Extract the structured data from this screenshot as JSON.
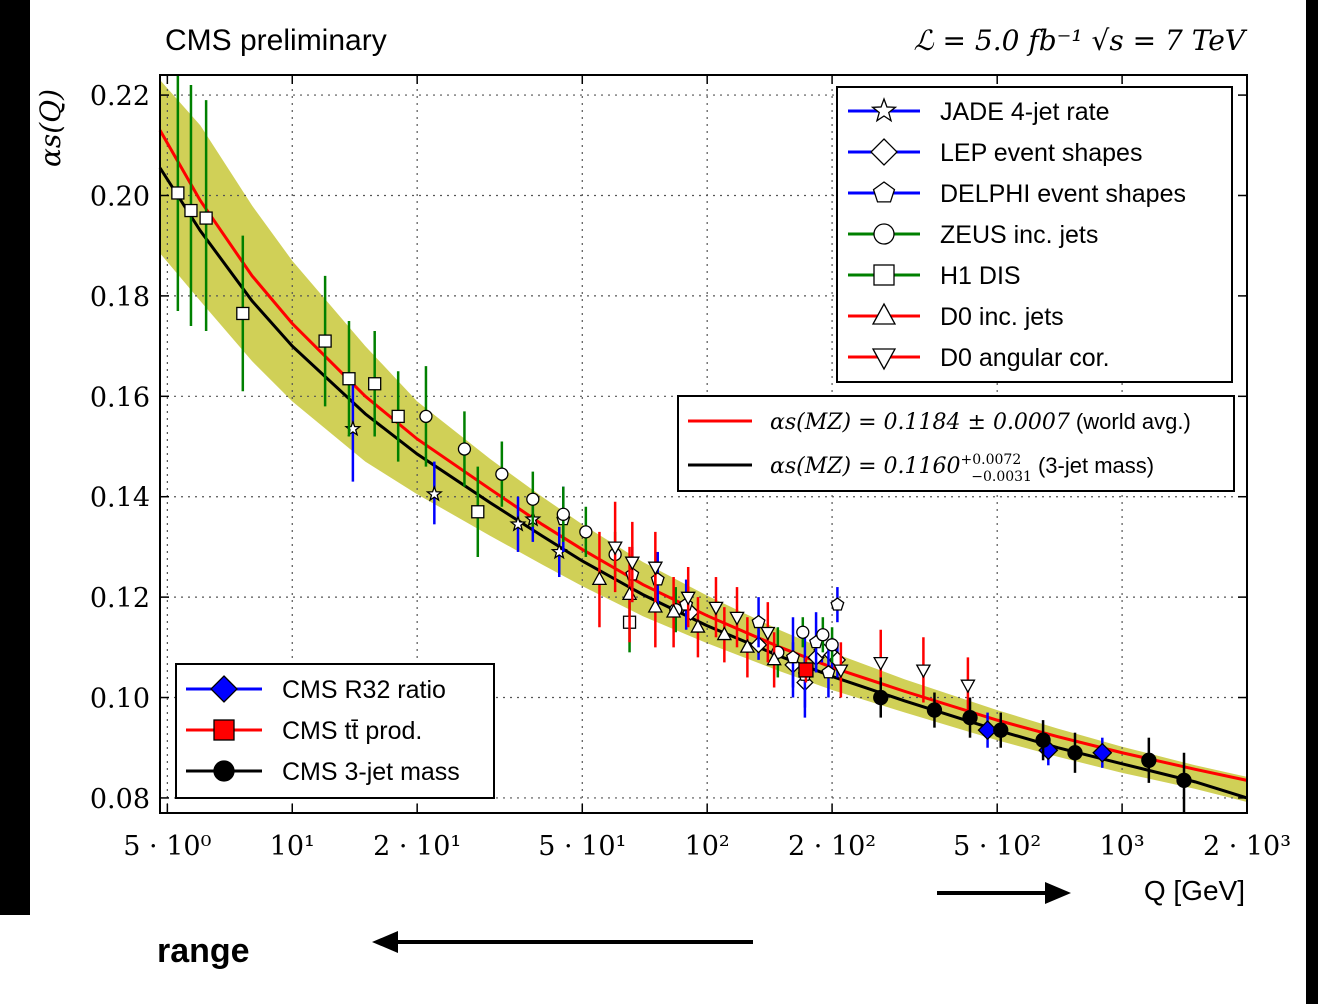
{
  "chart_data": {
    "type": "scatter",
    "title": "CMS preliminary",
    "subtitle": "ℒ = 5.0 fb⁻¹ √s = 7 TeV",
    "xlabel": "Q [GeV]",
    "ylabel": "αs(Q)",
    "x_scale": "log",
    "xlim": [
      4.8,
      2000
    ],
    "ylim": [
      0.077,
      0.224
    ],
    "x_ticks": [
      {
        "value": 5,
        "label": "5 · 10⁰"
      },
      {
        "value": 10,
        "label": "10¹"
      },
      {
        "value": 20,
        "label": "2 · 10¹"
      },
      {
        "value": 50,
        "label": "5 · 10¹"
      },
      {
        "value": 100,
        "label": "10²"
      },
      {
        "value": 200,
        "label": "2 · 10²"
      },
      {
        "value": 500,
        "label": "5 · 10²"
      },
      {
        "value": 1000,
        "label": "10³"
      },
      {
        "value": 2000,
        "label": "2 · 10³"
      }
    ],
    "y_ticks": [
      {
        "value": 0.08,
        "label": "0.08"
      },
      {
        "value": 0.1,
        "label": "0.10"
      },
      {
        "value": 0.12,
        "label": "0.12"
      },
      {
        "value": 0.14,
        "label": "0.14"
      },
      {
        "value": 0.16,
        "label": "0.16"
      },
      {
        "value": 0.18,
        "label": "0.18"
      },
      {
        "value": 0.2,
        "label": "0.20"
      },
      {
        "value": 0.22,
        "label": "0.22"
      }
    ],
    "grid": true,
    "legend_position": "top-right",
    "curves": [
      {
        "name": "αs(MZ) = 0.1184 ± 0.0007 (world avg.)",
        "color": "#ff0000",
        "x": [
          4.8,
          6,
          8,
          10,
          15,
          20,
          30,
          40,
          50,
          70,
          100,
          150,
          200,
          300,
          500,
          700,
          1000,
          1500,
          2000
        ],
        "y": [
          0.213,
          0.199,
          0.184,
          0.1745,
          0.16,
          0.1515,
          0.1415,
          0.1345,
          0.1295,
          0.1225,
          0.1163,
          0.11,
          0.106,
          0.1012,
          0.0955,
          0.0922,
          0.089,
          0.0857,
          0.0835
        ]
      },
      {
        "name": "αs(MZ) = 0.1160 +0.0072 −0.0031 (3-jet mass)",
        "color": "#000000",
        "x": [
          4.8,
          6,
          8,
          10,
          15,
          20,
          30,
          40,
          50,
          70,
          100,
          150,
          200,
          300,
          500,
          700,
          1000,
          1500,
          2000
        ],
        "y": [
          0.2055,
          0.193,
          0.179,
          0.17,
          0.1565,
          0.1485,
          0.1388,
          0.1322,
          0.1272,
          0.1205,
          0.1143,
          0.1082,
          0.1042,
          0.0993,
          0.0935,
          0.09,
          0.0868,
          0.0832,
          0.08
        ]
      }
    ],
    "band": {
      "color": "#c8c83a",
      "x": [
        4.8,
        6,
        8,
        10,
        15,
        20,
        30,
        40,
        50,
        70,
        100,
        150,
        200,
        300,
        500,
        700,
        1000,
        1500,
        2000
      ],
      "upper": [
        0.223,
        0.214,
        0.198,
        0.187,
        0.17,
        0.159,
        0.1475,
        0.14,
        0.1345,
        0.127,
        0.1203,
        0.1134,
        0.109,
        0.1036,
        0.0975,
        0.0938,
        0.0902,
        0.0865,
        0.0842
      ],
      "lower": [
        0.1885,
        0.179,
        0.167,
        0.159,
        0.147,
        0.1405,
        0.1322,
        0.1265,
        0.1222,
        0.1162,
        0.1108,
        0.1052,
        0.1015,
        0.097,
        0.0915,
        0.0882,
        0.085,
        0.0818,
        0.0792
      ]
    },
    "series": [
      {
        "name": "JADE 4-jet rate",
        "marker": "star",
        "color": "#0000ff",
        "points": [
          {
            "x": 14,
            "y": 0.1535,
            "lo": 0.143,
            "hi": 0.163
          },
          {
            "x": 22,
            "y": 0.1405,
            "lo": 0.1345,
            "hi": 0.147
          },
          {
            "x": 35,
            "y": 0.1345,
            "lo": 0.129,
            "hi": 0.14
          },
          {
            "x": 38,
            "y": 0.1355,
            "lo": 0.131,
            "hi": 0.14
          },
          {
            "x": 44,
            "y": 0.129,
            "lo": 0.124,
            "hi": 0.134
          }
        ]
      },
      {
        "name": "LEP event shapes",
        "marker": "diamond",
        "color": "#0000ff",
        "points": [
          {
            "x": 91.2,
            "y": 0.117,
            "lo": 0.1155,
            "hi": 0.1185
          },
          {
            "x": 133,
            "y": 0.1105,
            "lo": 0.1075,
            "hi": 0.1135
          },
          {
            "x": 161,
            "y": 0.1065,
            "lo": 0.102,
            "hi": 0.111
          },
          {
            "x": 172,
            "y": 0.103,
            "lo": 0.098,
            "hi": 0.108
          },
          {
            "x": 183,
            "y": 0.108,
            "lo": 0.105,
            "hi": 0.111
          },
          {
            "x": 189,
            "y": 0.1095,
            "lo": 0.107,
            "hi": 0.112
          },
          {
            "x": 200,
            "y": 0.1085,
            "lo": 0.105,
            "hi": 0.112
          },
          {
            "x": 206,
            "y": 0.1075,
            "lo": 0.104,
            "hi": 0.111
          }
        ]
      },
      {
        "name": "DELPHI event shapes",
        "marker": "pentagon",
        "color": "#0000ff",
        "points": [
          {
            "x": 45,
            "y": 0.1355,
            "lo": 0.129,
            "hi": 0.142
          },
          {
            "x": 66,
            "y": 0.1245,
            "lo": 0.119,
            "hi": 0.13
          },
          {
            "x": 76,
            "y": 0.1235,
            "lo": 0.118,
            "hi": 0.129
          },
          {
            "x": 89,
            "y": 0.1185,
            "lo": 0.1135,
            "hi": 0.1235
          },
          {
            "x": 133,
            "y": 0.115,
            "lo": 0.11,
            "hi": 0.12
          },
          {
            "x": 161,
            "y": 0.108,
            "lo": 0.1,
            "hi": 0.116
          },
          {
            "x": 172,
            "y": 0.1045,
            "lo": 0.096,
            "hi": 0.113
          },
          {
            "x": 183,
            "y": 0.111,
            "lo": 0.105,
            "hi": 0.117
          },
          {
            "x": 196,
            "y": 0.105,
            "lo": 0.1,
            "hi": 0.11
          },
          {
            "x": 206,
            "y": 0.1185,
            "lo": 0.115,
            "hi": 0.122
          }
        ]
      },
      {
        "name": "ZEUS inc. jets",
        "marker": "circle",
        "color": "#008000",
        "points": [
          {
            "x": 21,
            "y": 0.156,
            "lo": 0.146,
            "hi": 0.166
          },
          {
            "x": 26,
            "y": 0.1495,
            "lo": 0.142,
            "hi": 0.157
          },
          {
            "x": 32,
            "y": 0.1445,
            "lo": 0.138,
            "hi": 0.151
          },
          {
            "x": 38,
            "y": 0.1395,
            "lo": 0.134,
            "hi": 0.145
          },
          {
            "x": 45,
            "y": 0.1365,
            "lo": 0.131,
            "hi": 0.142
          },
          {
            "x": 51,
            "y": 0.133,
            "lo": 0.128,
            "hi": 0.138
          },
          {
            "x": 60,
            "y": 0.1285,
            "lo": 0.124,
            "hi": 0.133
          },
          {
            "x": 84,
            "y": 0.1175,
            "lo": 0.113,
            "hi": 0.122
          },
          {
            "x": 148,
            "y": 0.109,
            "lo": 0.104,
            "hi": 0.114
          },
          {
            "x": 170,
            "y": 0.113,
            "lo": 0.11,
            "hi": 0.116
          },
          {
            "x": 190,
            "y": 0.1125,
            "lo": 0.109,
            "hi": 0.116
          },
          {
            "x": 200,
            "y": 0.1105,
            "lo": 0.107,
            "hi": 0.114
          }
        ]
      },
      {
        "name": "H1 DIS",
        "marker": "square",
        "color": "#008000",
        "points": [
          {
            "x": 5.3,
            "y": 0.2005,
            "lo": 0.177,
            "hi": 0.224
          },
          {
            "x": 5.7,
            "y": 0.197,
            "lo": 0.174,
            "hi": 0.222
          },
          {
            "x": 6.2,
            "y": 0.1955,
            "lo": 0.173,
            "hi": 0.219
          },
          {
            "x": 7.6,
            "y": 0.1765,
            "lo": 0.161,
            "hi": 0.192
          },
          {
            "x": 12,
            "y": 0.171,
            "lo": 0.158,
            "hi": 0.184
          },
          {
            "x": 13.7,
            "y": 0.1635,
            "lo": 0.152,
            "hi": 0.175
          },
          {
            "x": 15.8,
            "y": 0.1625,
            "lo": 0.152,
            "hi": 0.173
          },
          {
            "x": 18,
            "y": 0.156,
            "lo": 0.147,
            "hi": 0.165
          },
          {
            "x": 28,
            "y": 0.137,
            "lo": 0.128,
            "hi": 0.146
          },
          {
            "x": 65,
            "y": 0.115,
            "lo": 0.109,
            "hi": 0.121
          }
        ]
      },
      {
        "name": "D0 inc. jets",
        "marker": "triangle-up",
        "color": "#ff0000",
        "points": [
          {
            "x": 55,
            "y": 0.1235,
            "lo": 0.114,
            "hi": 0.133
          },
          {
            "x": 65,
            "y": 0.1205,
            "lo": 0.111,
            "hi": 0.13
          },
          {
            "x": 75,
            "y": 0.118,
            "lo": 0.11,
            "hi": 0.126
          },
          {
            "x": 83,
            "y": 0.117,
            "lo": 0.11,
            "hi": 0.124
          },
          {
            "x": 95,
            "y": 0.114,
            "lo": 0.108,
            "hi": 0.12
          },
          {
            "x": 110,
            "y": 0.1125,
            "lo": 0.107,
            "hi": 0.118
          },
          {
            "x": 125,
            "y": 0.11,
            "lo": 0.104,
            "hi": 0.116
          },
          {
            "x": 145,
            "y": 0.1075,
            "lo": 0.102,
            "hi": 0.113
          }
        ]
      },
      {
        "name": "D0 angular cor.",
        "marker": "triangle-down",
        "color": "#ff0000",
        "points": [
          {
            "x": 60,
            "y": 0.13,
            "lo": 0.121,
            "hi": 0.139
          },
          {
            "x": 66,
            "y": 0.127,
            "lo": 0.119,
            "hi": 0.135
          },
          {
            "x": 75,
            "y": 0.126,
            "lo": 0.119,
            "hi": 0.133
          },
          {
            "x": 90,
            "y": 0.12,
            "lo": 0.114,
            "hi": 0.126
          },
          {
            "x": 105,
            "y": 0.118,
            "lo": 0.112,
            "hi": 0.124
          },
          {
            "x": 118,
            "y": 0.116,
            "lo": 0.11,
            "hi": 0.122
          },
          {
            "x": 140,
            "y": 0.113,
            "lo": 0.107,
            "hi": 0.119
          },
          {
            "x": 210,
            "y": 0.1055,
            "lo": 0.1,
            "hi": 0.111
          },
          {
            "x": 262,
            "y": 0.107,
            "lo": 0.1,
            "hi": 0.1135
          },
          {
            "x": 332,
            "y": 0.1055,
            "lo": 0.099,
            "hi": 0.112
          },
          {
            "x": 425,
            "y": 0.1025,
            "lo": 0.097,
            "hi": 0.108
          }
        ]
      },
      {
        "name": "CMS R32 ratio",
        "marker": "diamond-filled",
        "color": "#0000ff",
        "points": [
          {
            "x": 474,
            "y": 0.0935,
            "lo": 0.09,
            "hi": 0.097
          },
          {
            "x": 664,
            "y": 0.0895,
            "lo": 0.0865,
            "hi": 0.0925
          },
          {
            "x": 896,
            "y": 0.089,
            "lo": 0.086,
            "hi": 0.092
          }
        ]
      },
      {
        "name": "CMS tt̄ prod.",
        "marker": "square-filled",
        "color": "#ff0000",
        "points": [
          {
            "x": 173,
            "y": 0.1055,
            "lo": 0.103,
            "hi": 0.108
          }
        ]
      },
      {
        "name": "CMS 3-jet mass",
        "marker": "circle-filled",
        "color": "#000000",
        "points": [
          {
            "x": 262,
            "y": 0.1,
            "lo": 0.096,
            "hi": 0.104
          },
          {
            "x": 353,
            "y": 0.0975,
            "lo": 0.094,
            "hi": 0.101
          },
          {
            "x": 430,
            "y": 0.096,
            "lo": 0.092,
            "hi": 0.1
          },
          {
            "x": 510,
            "y": 0.0935,
            "lo": 0.09,
            "hi": 0.097
          },
          {
            "x": 645,
            "y": 0.0915,
            "lo": 0.0875,
            "hi": 0.0955
          },
          {
            "x": 770,
            "y": 0.089,
            "lo": 0.085,
            "hi": 0.093
          },
          {
            "x": 1160,
            "y": 0.0875,
            "lo": 0.083,
            "hi": 0.092
          },
          {
            "x": 1410,
            "y": 0.0835,
            "lo": 0.077,
            "hi": 0.089
          }
        ]
      }
    ]
  },
  "legend_top": {
    "items": [
      {
        "label": "JADE 4-jet rate",
        "marker": "star",
        "color": "#0000ff"
      },
      {
        "label": "LEP event shapes",
        "marker": "diamond",
        "color": "#0000ff"
      },
      {
        "label": "DELPHI event shapes",
        "marker": "pentagon",
        "color": "#0000ff"
      },
      {
        "label": "ZEUS inc. jets",
        "marker": "circle",
        "color": "#008000"
      },
      {
        "label": "H1 DIS",
        "marker": "square",
        "color": "#008000"
      },
      {
        "label": "D0 inc. jets",
        "marker": "triangle-up",
        "color": "#ff0000"
      },
      {
        "label": "D0 angular cor.",
        "marker": "triangle-down",
        "color": "#ff0000"
      }
    ]
  },
  "legend_fit": {
    "items": [
      {
        "label_math": "αs(MZ) = 0.1184 ± 0.0007",
        "label_text": "(world avg.)",
        "color": "#ff0000"
      },
      {
        "label_math": "αs(MZ) = 0.1160",
        "sup": "+0.0072",
        "sub": "−0.0031",
        "label_text": "(3-jet mass)",
        "color": "#000000"
      }
    ]
  },
  "legend_cms": {
    "items": [
      {
        "label": "CMS R32 ratio",
        "marker": "diamond-filled",
        "color": "#0000ff"
      },
      {
        "label": "CMS tt̄ prod.",
        "marker": "square-filled",
        "color": "#ff0000"
      },
      {
        "label": "CMS 3-jet mass",
        "marker": "circle-filled",
        "color": "#000000"
      }
    ]
  },
  "annotations": {
    "range_label": "range"
  }
}
